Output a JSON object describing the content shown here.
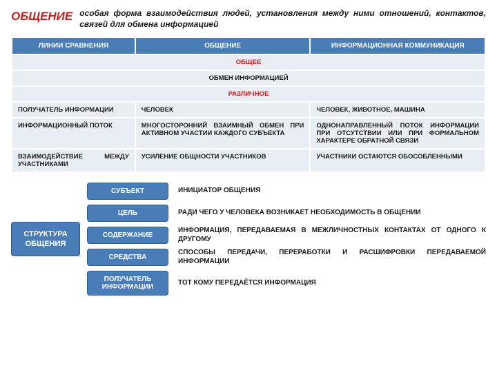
{
  "header": {
    "title": "ОБЩЕНИЕ",
    "definition": "особая форма взаимодействия людей, установления между ними отношений, контактов, связей для обмена информацией"
  },
  "table": {
    "columns": [
      "ЛИНИИ СРАВНЕНИЯ",
      "ОБЩЕНИЕ",
      "ИНФОРМАЦИОННАЯ КОММУНИКАЦИЯ"
    ],
    "section_common": "ОБЩЕЕ",
    "common_row": "ОБМЕН ИНФОРМАЦИЕЙ",
    "section_diff": "РАЗЛИЧНОЕ",
    "rows": [
      {
        "c1": "ПОЛУЧАТЕЛЬ ИНФОРМАЦИИ",
        "c2": "ЧЕЛОВЕК",
        "c3": "ЧЕЛОВЕК, ЖИВОТНОЕ, МАШИНА"
      },
      {
        "c1": "ИНФОРМАЦИОННЫЙ ПОТОК",
        "c2": "МНОГОСТОРОННИЙ ВЗАИМНЫЙ ОБМЕН ПРИ АКТИВНОМ УЧАСТИИ КАЖДОГО СУБЪЕКТА",
        "c3": "ОДНОНАПРАВЛЕННЫЙ ПОТОК ИНФОРМАЦИИ ПРИ ОТСУТСТВИИ ИЛИ ПРИ ФОРМАЛЬНОМ ХАРАКТЕРЕ ОБРАТНОЙ СВЯЗИ"
      },
      {
        "c1": "ВЗАИМОДЕЙСТВИЕ МЕЖДУ УЧАСТНИКАМИ",
        "c2": "УСИЛЕНИЕ ОБЩНОСТИ УЧАСТНИКОВ",
        "c3": "УЧАСТНИКИ ОСТАЮТСЯ ОБОСОБЛЕННЫМИ"
      }
    ]
  },
  "structure": {
    "main": "СТРУКТУРА ОБЩЕНИЯ",
    "items": [
      {
        "chip": "СУБЪЕКТ",
        "desc": "ИНИЦИАТОР ОБЩЕНИЯ"
      },
      {
        "chip": "ЦЕЛЬ",
        "desc": "РАДИ ЧЕГО У ЧЕЛОВЕКА ВОЗНИКАЕТ НЕОБХОДИМОСТЬ В ОБЩЕНИИ"
      },
      {
        "chip": "СОДЕРЖАНИЕ",
        "desc": "ИНФОРМАЦИЯ, ПЕРЕДАВАЕМАЯ В МЕЖЛИЧНОСТНЫХ КОНТАКТАХ ОТ ОДНОГО К ДРУГОМУ"
      },
      {
        "chip": "СРЕДСТВА",
        "desc": "СПОСОБЫ ПЕРЕДАЧИ, ПЕРЕРАБОТКИ И РАСШИФРОВКИ ПЕРЕДАВАЕМОЙ ИНФОРМАЦИИ"
      },
      {
        "chip": "ПОЛУЧАТЕЛЬ ИНФОРМАЦИИ",
        "desc": "ТОТ КОМУ ПЕРЕДАЁТСЯ ИНФОРМАЦИЯ"
      }
    ]
  },
  "colors": {
    "accent_blue": "#4a7db8",
    "accent_red": "#c42020",
    "cell_bg": "#e9eef5",
    "text": "#1a1a1a"
  }
}
